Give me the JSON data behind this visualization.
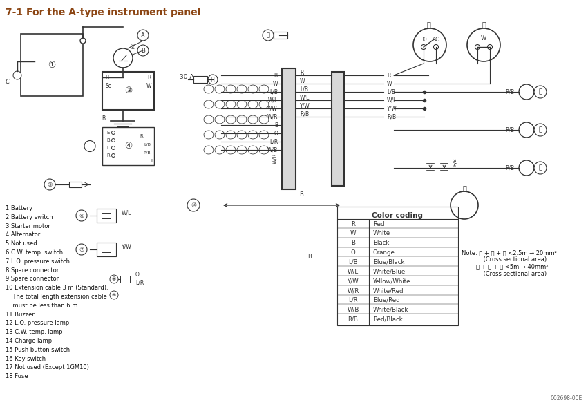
{
  "title": "7-1 For the A-type instrument panel",
  "title_color": "#8B4513",
  "title_fontsize": 10,
  "bg_color": "#ffffff",
  "line_color": "#333333",
  "legend_items": [
    "1 Battery",
    "2 Battery switch",
    "3 Starter motor",
    "4 Alternator",
    "5 Not used",
    "6 C.W. temp. switch",
    "7 L.O. pressure switch",
    "8 Spare connector",
    "9 Spare connector",
    "10 Extension cable 3 m (Standard).",
    "    The total length extension cable",
    "    must be less than 6 m.",
    "11 Buzzer",
    "12 L.O. pressure lamp",
    "13 C.W. temp. lamp",
    "14 Charge lamp",
    "15 Push button switch",
    "16 Key switch",
    "17 Not used (Except 1GM10)",
    "18 Fuse"
  ],
  "color_table_title": "Color coding",
  "color_codes": [
    [
      "R",
      "Red"
    ],
    [
      "W",
      "White"
    ],
    [
      "B",
      "Black"
    ],
    [
      "O",
      "Orange"
    ],
    [
      "L/B",
      "Blue/Black"
    ],
    [
      "W/L",
      "White/Blue"
    ],
    [
      "Y/W",
      "Yellow/White"
    ],
    [
      "W/R",
      "White/Red"
    ],
    [
      "L/R",
      "Blue/Red"
    ],
    [
      "W/B",
      "White/Black"
    ],
    [
      "R/B",
      "Red/Black"
    ]
  ],
  "note_text": "Note: Ⓐ + Ⓑ + Ⓒ <2.5m → 20mm²\n            (Cross sectional area)\n        Ⓐ + Ⓑ + Ⓒ <5m → 40mm²\n            (Cross sectional area)",
  "watermark": "002698-00E",
  "wire_labels_left": [
    "R",
    "W",
    "L/B",
    "W/L",
    "Y/W",
    "W/R",
    "B",
    "O",
    "L/R",
    "W/B"
  ],
  "wire_labels_right": [
    "R",
    "W",
    "L/B",
    "W/L",
    "Y/W",
    "R/B"
  ]
}
